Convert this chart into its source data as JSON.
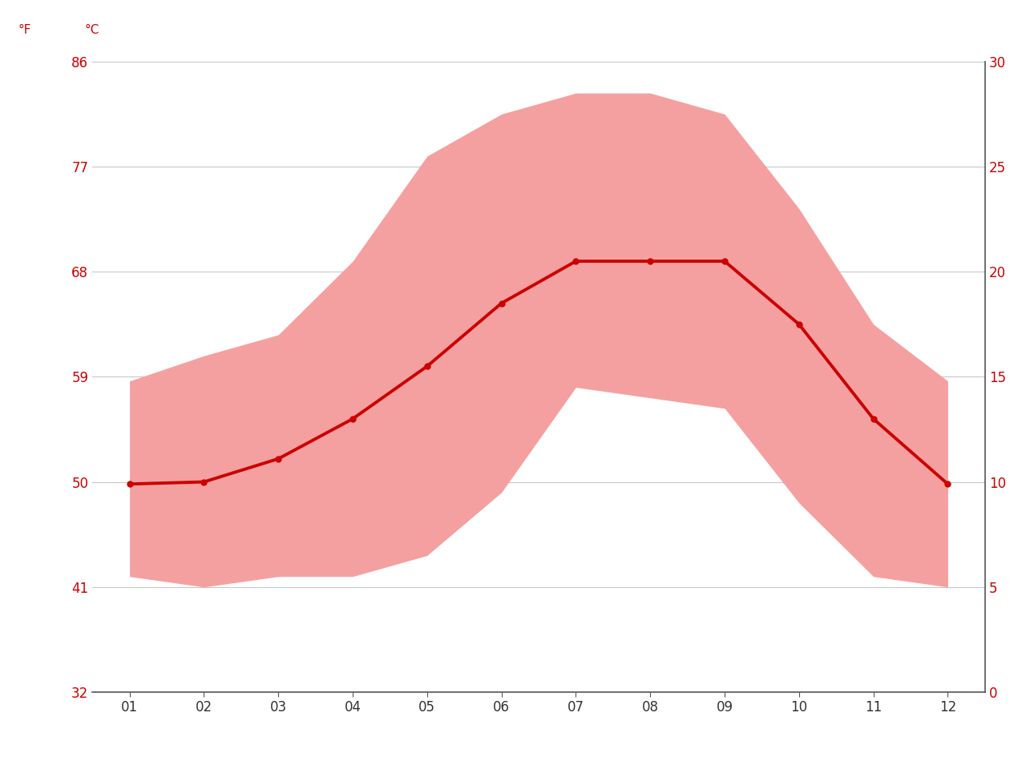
{
  "months": [
    1,
    2,
    3,
    4,
    5,
    6,
    7,
    8,
    9,
    10,
    11,
    12
  ],
  "month_labels": [
    "01",
    "02",
    "03",
    "04",
    "05",
    "06",
    "07",
    "08",
    "09",
    "10",
    "11",
    "12"
  ],
  "avg_temp_c": [
    9.9,
    10.0,
    11.1,
    13.0,
    15.5,
    18.5,
    20.5,
    20.5,
    20.5,
    17.5,
    13.0,
    9.9
  ],
  "max_temp_c": [
    14.8,
    16.0,
    17.0,
    20.5,
    25.5,
    27.5,
    28.5,
    28.5,
    27.5,
    23.0,
    17.5,
    14.8
  ],
  "min_temp_c": [
    5.5,
    5.0,
    5.5,
    5.5,
    6.5,
    9.5,
    14.5,
    14.0,
    13.5,
    9.0,
    5.5,
    5.0
  ],
  "yticks_c": [
    0,
    5,
    10,
    15,
    20,
    25,
    30
  ],
  "yticks_f": [
    32,
    41,
    50,
    59,
    68,
    77,
    86
  ],
  "ylim_c": [
    0,
    30
  ],
  "line_color": "#cc0000",
  "band_color": "#f5a0a0",
  "band_alpha": 1.0,
  "background_color": "#ffffff",
  "grid_color": "#c8c8c8",
  "tick_color": "#cc0000",
  "label_f": "°F",
  "label_c": "°C",
  "spine_color": "#555555"
}
